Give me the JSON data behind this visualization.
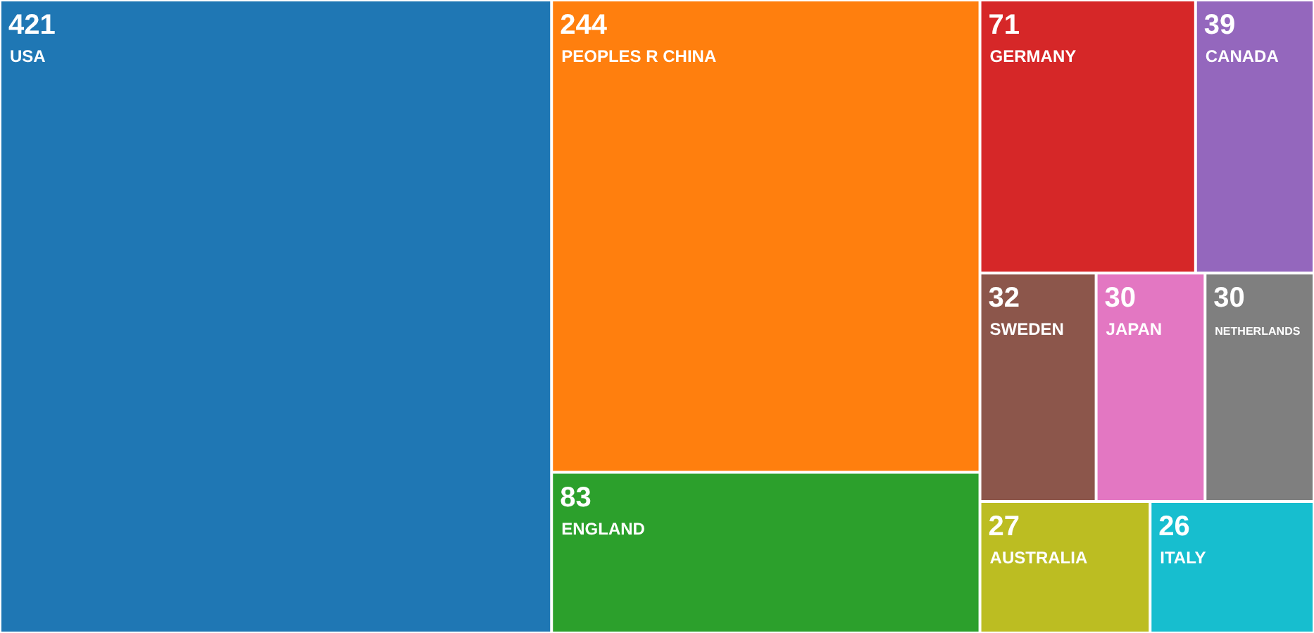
{
  "chart_data": {
    "type": "other",
    "categories": [
      "USA",
      "PEOPLES R CHINA",
      "ENGLAND",
      "GERMANY",
      "CANADA",
      "SWEDEN",
      "JAPAN",
      "NETHERLANDS",
      "AUSTRALIA",
      "ITALY"
    ],
    "values": [
      421,
      244,
      83,
      71,
      39,
      32,
      30,
      30,
      27,
      26
    ],
    "colors": [
      "#1f77b4",
      "#ff7f0e",
      "#2ca02c",
      "#d62728",
      "#9467bd",
      "#8c564b",
      "#e377c2",
      "#7f7f7f",
      "#bcbd22",
      "#17becf"
    ],
    "data_labels": true
  }
}
